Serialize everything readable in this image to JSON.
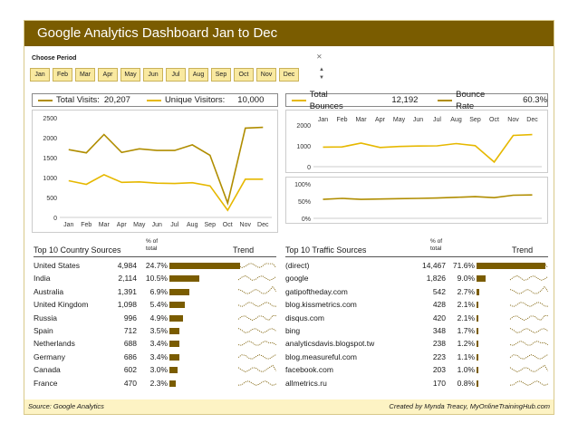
{
  "header": {
    "title": "Google Analytics Dashboard Jan to Dec"
  },
  "period": {
    "label": "Choose Period",
    "months": [
      "Jan",
      "Feb",
      "Mar",
      "Apr",
      "May",
      "Jun",
      "Jul",
      "Aug",
      "Sep",
      "Oct",
      "Nov",
      "Dec"
    ],
    "filter_icon": "clear-filter-icon"
  },
  "visits_legend": {
    "total_label": "Total Visits:",
    "total_value": "20,207",
    "unique_label": "Unique Visitors:",
    "unique_value": "10,000"
  },
  "bounce_legend": {
    "total_label": "Total Bounces",
    "total_value": "12,192",
    "rate_label": "Bounce Rate",
    "rate_value": "60.3%"
  },
  "colors": {
    "brand": "#7a5c00",
    "accent": "#e8b800",
    "dark_line": "#b08d00",
    "light_line": "#e6b800",
    "slicer": "#f9e9a0"
  },
  "chart_data": [
    {
      "type": "line",
      "categories": [
        "Jan",
        "Feb",
        "Mar",
        "Apr",
        "May",
        "Jun",
        "Jul",
        "Aug",
        "Sep",
        "Oct",
        "Nov",
        "Dec"
      ],
      "ylim": [
        0,
        2500
      ],
      "yticks": [
        0,
        500,
        1000,
        1500,
        2000,
        2500
      ],
      "series": [
        {
          "name": "Total Visits",
          "values": [
            1700,
            1620,
            2080,
            1630,
            1720,
            1680,
            1680,
            1820,
            1560,
            360,
            2240,
            2260
          ]
        },
        {
          "name": "Unique Visitors",
          "values": [
            920,
            830,
            1070,
            880,
            890,
            860,
            850,
            870,
            790,
            180,
            960,
            960
          ]
        }
      ]
    },
    {
      "type": "line",
      "categories": [
        "Jan",
        "Feb",
        "Mar",
        "Apr",
        "May",
        "Jun",
        "Jul",
        "Aug",
        "Sep",
        "Oct",
        "Nov",
        "Dec"
      ],
      "ylim": [
        0,
        2000
      ],
      "yticks": [
        0,
        1000,
        2000
      ],
      "series": [
        {
          "name": "Total Bounces",
          "values": [
            940,
            950,
            1130,
            920,
            970,
            990,
            1000,
            1110,
            1010,
            220,
            1500,
            1540
          ]
        }
      ]
    },
    {
      "type": "line",
      "categories": [
        "Jan",
        "Feb",
        "Mar",
        "Apr",
        "May",
        "Jun",
        "Jul",
        "Aug",
        "Sep",
        "Oct",
        "Nov",
        "Dec"
      ],
      "ylim": [
        0,
        100
      ],
      "yticks": [
        "0%",
        "50%",
        "100%"
      ],
      "ytick_values": [
        0,
        50,
        100
      ],
      "series": [
        {
          "name": "Bounce Rate",
          "values": [
            55,
            58,
            55,
            56,
            57,
            58,
            59,
            61,
            63,
            60,
            67,
            68
          ]
        }
      ]
    }
  ],
  "country": {
    "title": "Top 10 Country Sources",
    "pct_head_1": "% of",
    "pct_head_2": "total",
    "trend_head": "Trend",
    "rows": [
      {
        "name": "United States",
        "value": "4,984",
        "pct": "24.7%",
        "share": 24.7
      },
      {
        "name": "India",
        "value": "2,114",
        "pct": "10.5%",
        "share": 10.5
      },
      {
        "name": "Australia",
        "value": "1,391",
        "pct": "6.9%",
        "share": 6.9
      },
      {
        "name": "United Kingdom",
        "value": "1,098",
        "pct": "5.4%",
        "share": 5.4
      },
      {
        "name": "Russia",
        "value": "996",
        "pct": "4.9%",
        "share": 4.9
      },
      {
        "name": "Spain",
        "value": "712",
        "pct": "3.5%",
        "share": 3.5
      },
      {
        "name": "Netherlands",
        "value": "688",
        "pct": "3.4%",
        "share": 3.4
      },
      {
        "name": "Germany",
        "value": "686",
        "pct": "3.4%",
        "share": 3.4
      },
      {
        "name": "Canada",
        "value": "602",
        "pct": "3.0%",
        "share": 3.0
      },
      {
        "name": "France",
        "value": "470",
        "pct": "2.3%",
        "share": 2.3
      }
    ]
  },
  "traffic": {
    "title": "Top 10 Traffic Sources",
    "pct_head_1": "% of",
    "pct_head_2": "total",
    "trend_head": "Trend",
    "rows": [
      {
        "name": "(direct)",
        "value": "14,467",
        "pct": "71.6%",
        "share": 71.6
      },
      {
        "name": "google",
        "value": "1,826",
        "pct": "9.0%",
        "share": 9.0
      },
      {
        "name": "gatipoftheday.com",
        "value": "542",
        "pct": "2.7%",
        "share": 2.7
      },
      {
        "name": "blog.kissmetrics.com",
        "value": "428",
        "pct": "2.1%",
        "share": 2.1
      },
      {
        "name": "disqus.com",
        "value": "420",
        "pct": "2.1%",
        "share": 2.1
      },
      {
        "name": "bing",
        "value": "348",
        "pct": "1.7%",
        "share": 1.7
      },
      {
        "name": "analyticsdavis.blogspot.tw",
        "value": "238",
        "pct": "1.2%",
        "share": 1.2
      },
      {
        "name": "blog.measureful.com",
        "value": "223",
        "pct": "1.1%",
        "share": 1.1
      },
      {
        "name": "facebook.com",
        "value": "203",
        "pct": "1.0%",
        "share": 1.0
      },
      {
        "name": "allmetrics.ru",
        "value": "170",
        "pct": "0.8%",
        "share": 0.8
      }
    ]
  },
  "footer": {
    "source": "Source: Google Analytics",
    "credit": "Created by Mynda Treacy, MyOnlineTrainingHub.com"
  }
}
